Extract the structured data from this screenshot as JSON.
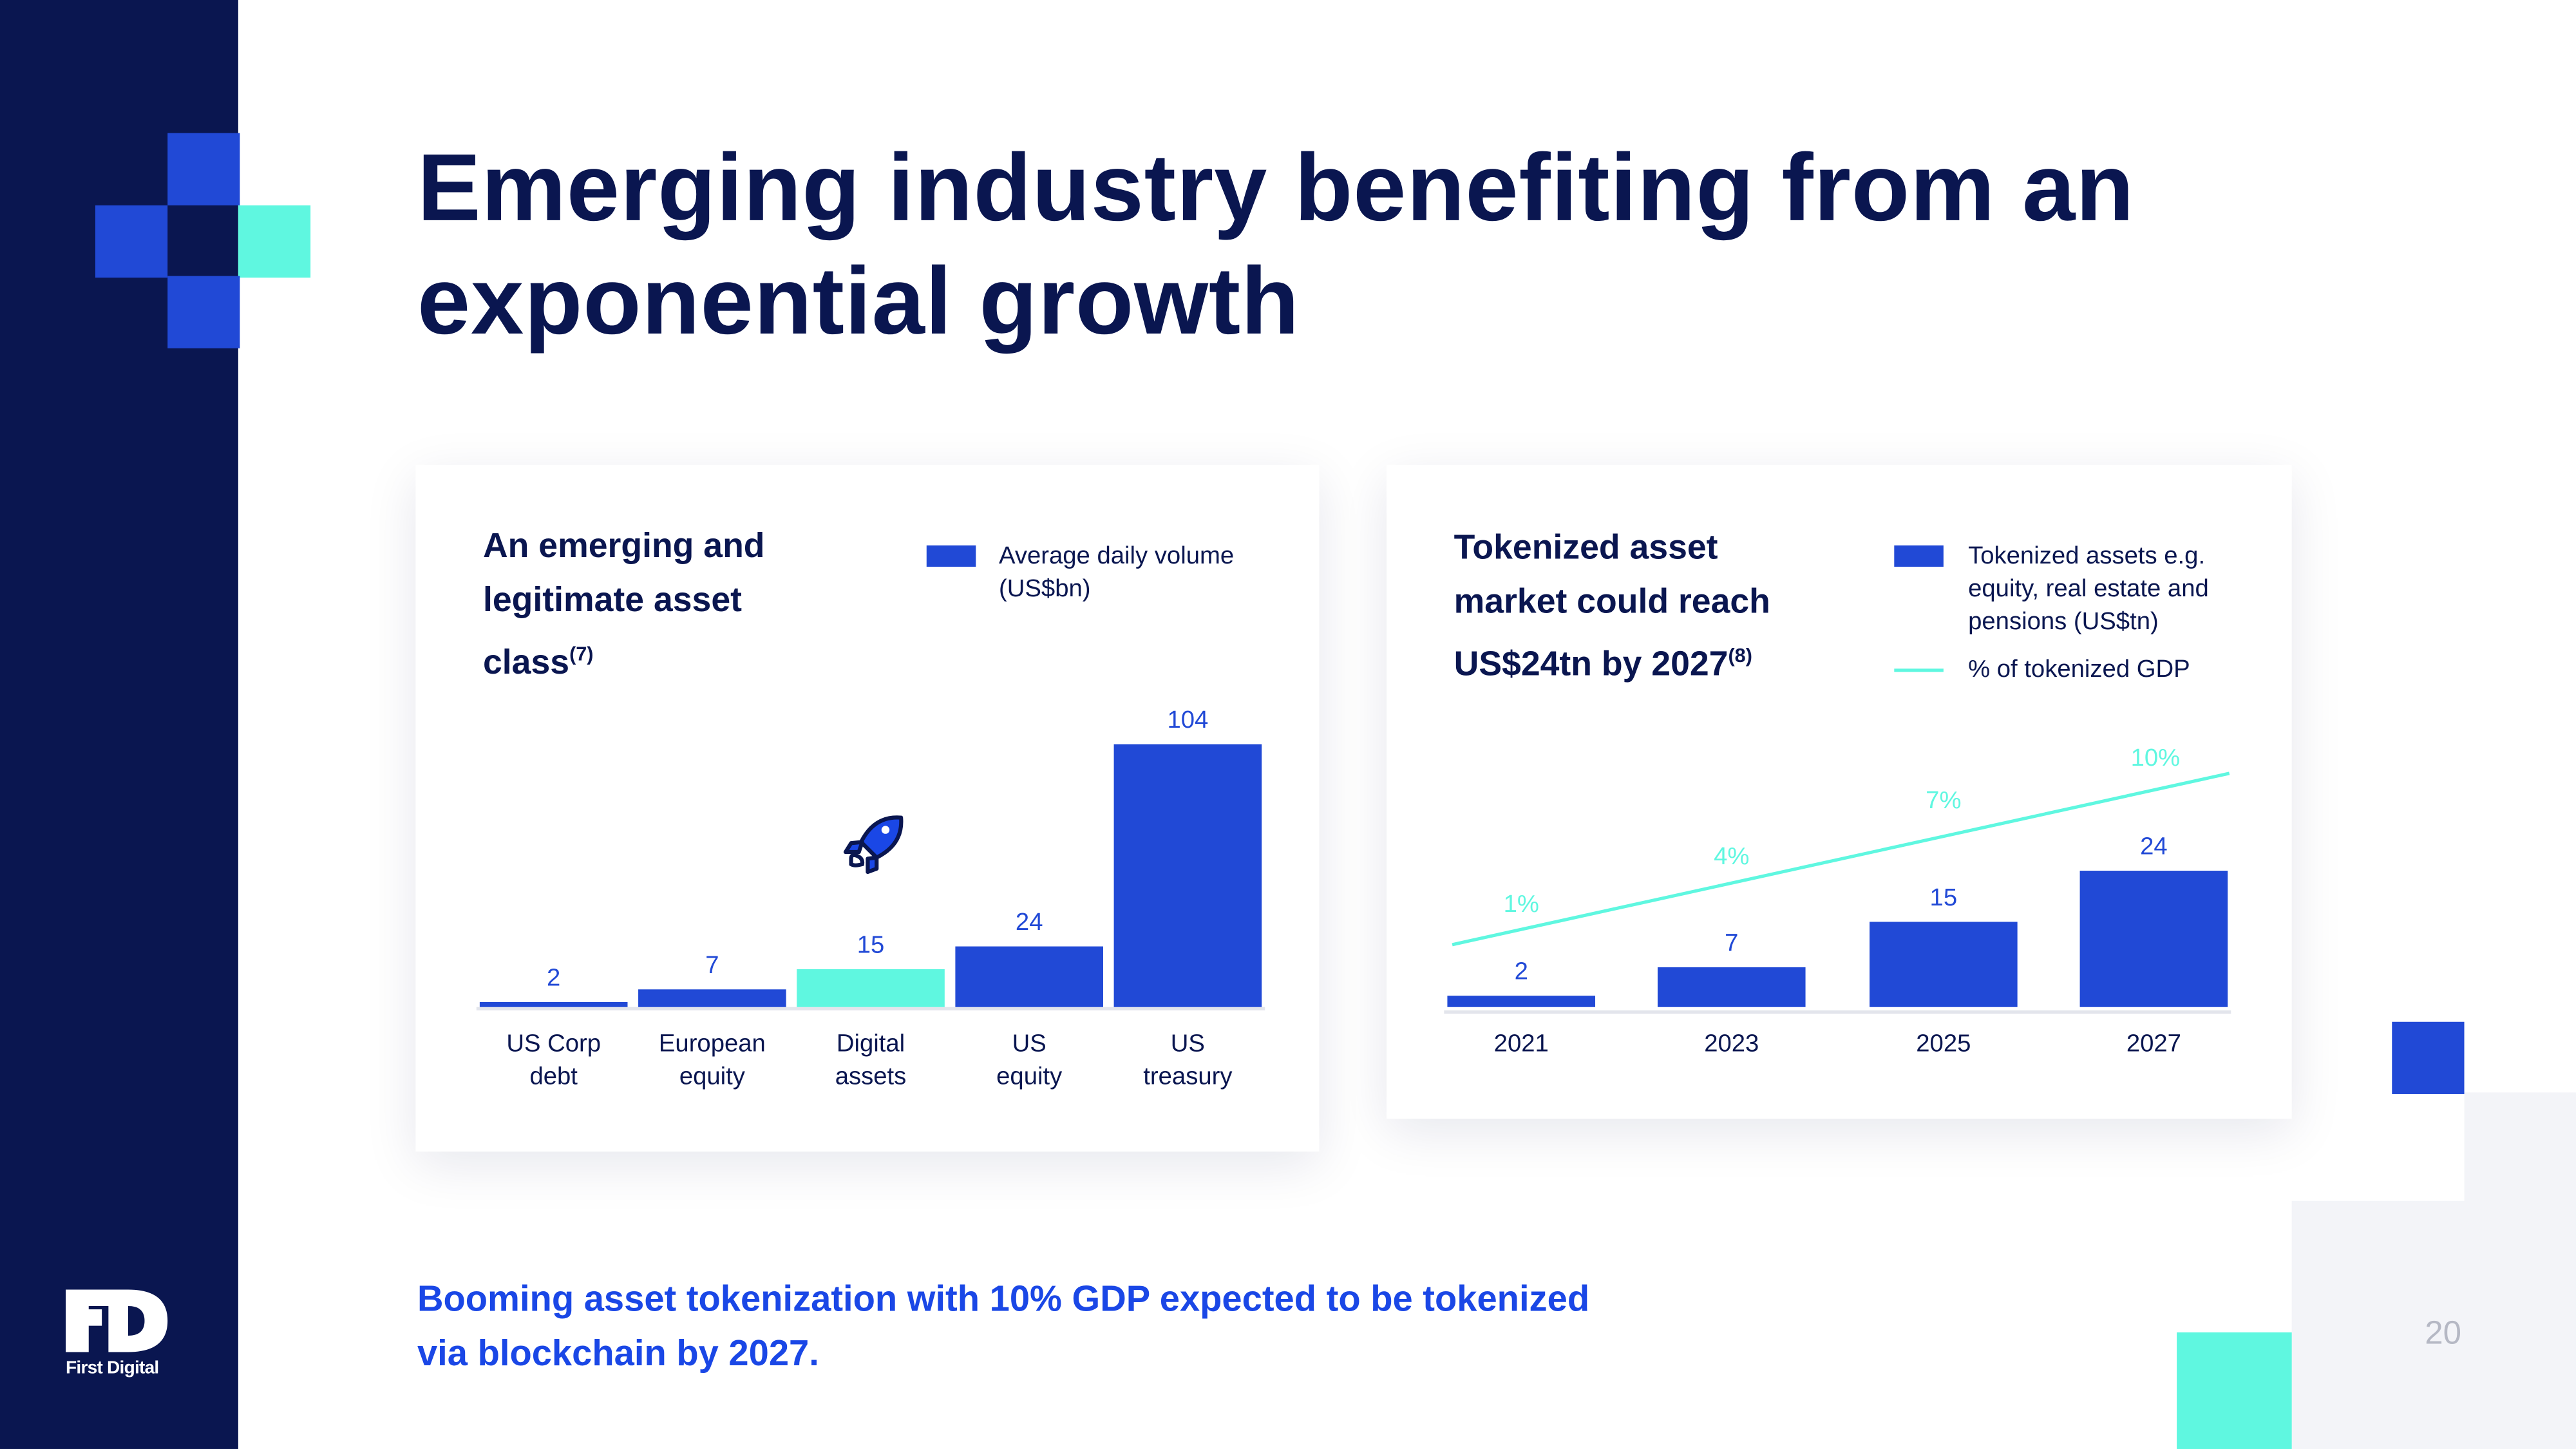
{
  "title_lines": [
    "Emerging industry benefiting from an",
    "exponential growth"
  ],
  "logo_text": "First Digital",
  "footer_lines": [
    "Booming asset tokenization with 10% GDP expected to be tokenized",
    "via blockchain by 2027."
  ],
  "page_number": "20",
  "colors": {
    "navy": "#0a1650",
    "blue": "#2149d6",
    "teal": "#5ff7e0",
    "gray": "#f3f4f8"
  },
  "chart_data": [
    {
      "type": "bar",
      "title": "An emerging and legitimate asset class",
      "title_lines": [
        "An emerging and",
        "legitimate asset",
        "class"
      ],
      "title_sup": "(7)",
      "legend": [
        {
          "name": "Average daily volume (US$bn)",
          "lines": [
            "Average daily volume",
            "(US$bn)"
          ],
          "color": "#2149d6"
        }
      ],
      "categories": [
        [
          "US Corp",
          "debt"
        ],
        [
          "European",
          "equity"
        ],
        [
          "Digital",
          "assets"
        ],
        [
          "US",
          "equity"
        ],
        [
          "US",
          "treasury"
        ]
      ],
      "values": [
        2,
        7,
        15,
        24,
        104
      ],
      "bar_colors": [
        "#2149d6",
        "#2149d6",
        "#5ff7e0",
        "#2149d6",
        "#2149d6"
      ],
      "highlight_icon": "rocket-icon",
      "ylim": [
        0,
        104
      ]
    },
    {
      "type": "bar+line",
      "title": "Tokenized asset market could reach US$24tn by 2027",
      "title_lines": [
        "Tokenized asset",
        "market could reach",
        "US$24tn by 2027"
      ],
      "title_sup": "(8)",
      "legend": [
        {
          "name": "Tokenized assets e.g. equity, real estate and pensions (US$tn)",
          "lines": [
            "Tokenized assets e.g.",
            "equity, real estate and",
            "pensions (US$tn)"
          ],
          "color": "#2149d6",
          "kind": "bar"
        },
        {
          "name": "% of tokenized GDP",
          "lines": [
            "% of tokenized GDP"
          ],
          "color": "#5ff7e0",
          "kind": "line"
        }
      ],
      "categories": [
        "2021",
        "2023",
        "2025",
        "2027"
      ],
      "series": [
        {
          "name": "Tokenized assets e.g. equity, real estate and pensions (US$tn)",
          "type": "bar",
          "values": [
            2,
            7,
            15,
            24
          ]
        },
        {
          "name": "% of tokenized GDP",
          "type": "line",
          "values": [
            1,
            4,
            7,
            10
          ],
          "labels": [
            "1%",
            "4%",
            "7%",
            "10%"
          ]
        }
      ]
    }
  ]
}
